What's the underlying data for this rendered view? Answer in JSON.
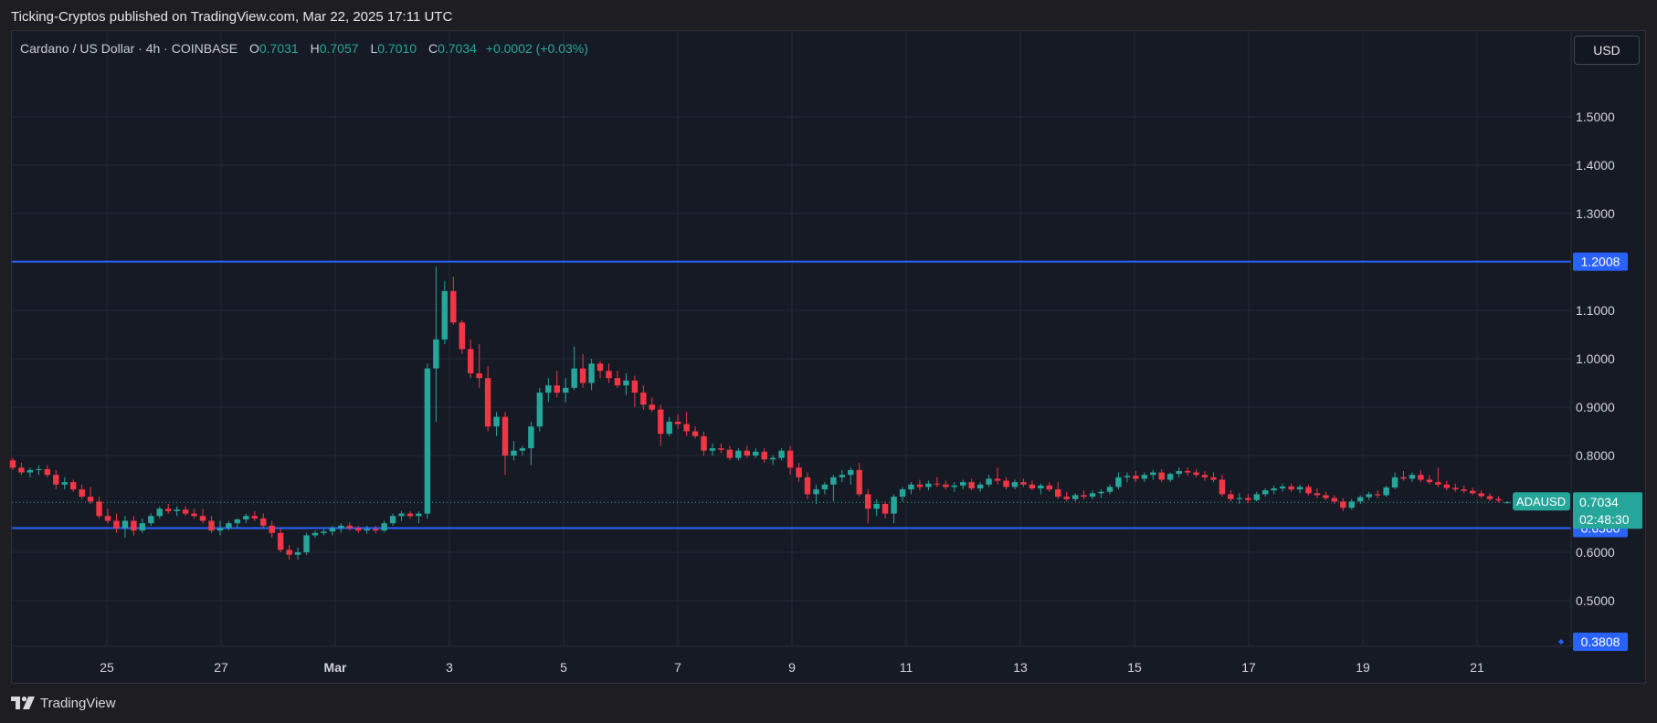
{
  "header": {
    "publisher_line": "Ticking-Cryptos published on TradingView.com, Mar 22, 2025 17:11 UTC"
  },
  "legend": {
    "symbol_line": "Cardano / US Dollar · 4h · COINBASE",
    "open_label": "O",
    "open": "0.7031",
    "high_label": "H",
    "high": "0.7057",
    "low_label": "L",
    "low": "0.7010",
    "close_label": "C",
    "close": "0.7034",
    "change": "+0.0002 (+0.03%)"
  },
  "toolbar": {
    "currency": "USD"
  },
  "footer": {
    "brand": "TradingView"
  },
  "colors": {
    "up": "#26a69a",
    "down": "#f23645",
    "level_line": "#2962ff",
    "grid": "#262a36",
    "axis_text": "#d1d4dc",
    "price_label_bg": "#26a69a"
  },
  "chart_data": {
    "type": "candlestick",
    "symbol": "ADAUSD",
    "timeframe": "4h",
    "yticks": [
      "1.5000",
      "1.4000",
      "1.3000",
      "1.1000",
      "1.0000",
      "0.9000",
      "0.8000",
      "0.6000",
      "0.5000"
    ],
    "xticks": [
      "25",
      "27",
      "Mar",
      "3",
      "5",
      "7",
      "9",
      "11",
      "13",
      "15",
      "17",
      "19",
      "21"
    ],
    "ylim": [
      0.3,
      1.6
    ],
    "grid": true,
    "horizontal_levels": [
      {
        "value": 1.2008,
        "label": "1.2008"
      },
      {
        "value": 0.65,
        "label": "0.6500"
      },
      {
        "value": 0.3808,
        "label": "0.3808"
      }
    ],
    "last_price": {
      "symbol": "ADAUSD",
      "value": 0.7034,
      "label": "0.7034",
      "countdown": "02:48:30"
    },
    "candles": [
      {
        "o": 0.79,
        "h": 0.795,
        "l": 0.77,
        "c": 0.775
      },
      {
        "o": 0.775,
        "h": 0.785,
        "l": 0.76,
        "c": 0.765
      },
      {
        "o": 0.765,
        "h": 0.775,
        "l": 0.755,
        "c": 0.77
      },
      {
        "o": 0.77,
        "h": 0.78,
        "l": 0.76,
        "c": 0.772
      },
      {
        "o": 0.772,
        "h": 0.78,
        "l": 0.755,
        "c": 0.76
      },
      {
        "o": 0.76,
        "h": 0.77,
        "l": 0.73,
        "c": 0.74
      },
      {
        "o": 0.74,
        "h": 0.755,
        "l": 0.73,
        "c": 0.745
      },
      {
        "o": 0.745,
        "h": 0.75,
        "l": 0.725,
        "c": 0.73
      },
      {
        "o": 0.73,
        "h": 0.74,
        "l": 0.71,
        "c": 0.715
      },
      {
        "o": 0.715,
        "h": 0.735,
        "l": 0.7,
        "c": 0.705
      },
      {
        "o": 0.705,
        "h": 0.715,
        "l": 0.67,
        "c": 0.675
      },
      {
        "o": 0.675,
        "h": 0.69,
        "l": 0.66,
        "c": 0.665
      },
      {
        "o": 0.665,
        "h": 0.68,
        "l": 0.64,
        "c": 0.65
      },
      {
        "o": 0.65,
        "h": 0.675,
        "l": 0.63,
        "c": 0.665
      },
      {
        "o": 0.665,
        "h": 0.675,
        "l": 0.635,
        "c": 0.645
      },
      {
        "o": 0.645,
        "h": 0.67,
        "l": 0.64,
        "c": 0.66
      },
      {
        "o": 0.66,
        "h": 0.68,
        "l": 0.655,
        "c": 0.675
      },
      {
        "o": 0.675,
        "h": 0.695,
        "l": 0.67,
        "c": 0.69
      },
      {
        "o": 0.69,
        "h": 0.7,
        "l": 0.68,
        "c": 0.685
      },
      {
        "o": 0.685,
        "h": 0.695,
        "l": 0.675,
        "c": 0.688
      },
      {
        "o": 0.688,
        "h": 0.695,
        "l": 0.675,
        "c": 0.68
      },
      {
        "o": 0.68,
        "h": 0.69,
        "l": 0.67,
        "c": 0.675
      },
      {
        "o": 0.675,
        "h": 0.69,
        "l": 0.66,
        "c": 0.665
      },
      {
        "o": 0.665,
        "h": 0.675,
        "l": 0.64,
        "c": 0.645
      },
      {
        "o": 0.645,
        "h": 0.665,
        "l": 0.635,
        "c": 0.65
      },
      {
        "o": 0.65,
        "h": 0.665,
        "l": 0.645,
        "c": 0.66
      },
      {
        "o": 0.66,
        "h": 0.67,
        "l": 0.65,
        "c": 0.668
      },
      {
        "o": 0.668,
        "h": 0.68,
        "l": 0.66,
        "c": 0.675
      },
      {
        "o": 0.675,
        "h": 0.685,
        "l": 0.665,
        "c": 0.67
      },
      {
        "o": 0.67,
        "h": 0.68,
        "l": 0.65,
        "c": 0.655
      },
      {
        "o": 0.655,
        "h": 0.665,
        "l": 0.63,
        "c": 0.64
      },
      {
        "o": 0.64,
        "h": 0.65,
        "l": 0.6,
        "c": 0.605
      },
      {
        "o": 0.605,
        "h": 0.615,
        "l": 0.585,
        "c": 0.595
      },
      {
        "o": 0.595,
        "h": 0.61,
        "l": 0.585,
        "c": 0.6
      },
      {
        "o": 0.6,
        "h": 0.64,
        "l": 0.595,
        "c": 0.635
      },
      {
        "o": 0.635,
        "h": 0.645,
        "l": 0.63,
        "c": 0.64
      },
      {
        "o": 0.64,
        "h": 0.648,
        "l": 0.635,
        "c": 0.643
      },
      {
        "o": 0.643,
        "h": 0.655,
        "l": 0.635,
        "c": 0.65
      },
      {
        "o": 0.65,
        "h": 0.66,
        "l": 0.64,
        "c": 0.655
      },
      {
        "o": 0.655,
        "h": 0.662,
        "l": 0.645,
        "c": 0.65
      },
      {
        "o": 0.65,
        "h": 0.655,
        "l": 0.64,
        "c": 0.645
      },
      {
        "o": 0.645,
        "h": 0.655,
        "l": 0.638,
        "c": 0.648
      },
      {
        "o": 0.648,
        "h": 0.655,
        "l": 0.64,
        "c": 0.645
      },
      {
        "o": 0.645,
        "h": 0.665,
        "l": 0.642,
        "c": 0.66
      },
      {
        "o": 0.66,
        "h": 0.68,
        "l": 0.655,
        "c": 0.675
      },
      {
        "o": 0.675,
        "h": 0.685,
        "l": 0.665,
        "c": 0.68
      },
      {
        "o": 0.68,
        "h": 0.685,
        "l": 0.67,
        "c": 0.675
      },
      {
        "o": 0.675,
        "h": 0.685,
        "l": 0.66,
        "c": 0.68
      },
      {
        "o": 0.68,
        "h": 0.99,
        "l": 0.67,
        "c": 0.98
      },
      {
        "o": 0.98,
        "h": 1.19,
        "l": 0.87,
        "c": 1.04
      },
      {
        "o": 1.04,
        "h": 1.16,
        "l": 1.03,
        "c": 1.14
      },
      {
        "o": 1.14,
        "h": 1.17,
        "l": 1.07,
        "c": 1.075
      },
      {
        "o": 1.075,
        "h": 1.08,
        "l": 1.01,
        "c": 1.02
      },
      {
        "o": 1.02,
        "h": 1.04,
        "l": 0.96,
        "c": 0.97
      },
      {
        "o": 0.97,
        "h": 1.03,
        "l": 0.94,
        "c": 0.96
      },
      {
        "o": 0.96,
        "h": 0.985,
        "l": 0.85,
        "c": 0.86
      },
      {
        "o": 0.86,
        "h": 0.89,
        "l": 0.84,
        "c": 0.88
      },
      {
        "o": 0.88,
        "h": 0.89,
        "l": 0.76,
        "c": 0.8
      },
      {
        "o": 0.8,
        "h": 0.83,
        "l": 0.79,
        "c": 0.81
      },
      {
        "o": 0.81,
        "h": 0.82,
        "l": 0.8,
        "c": 0.815
      },
      {
        "o": 0.815,
        "h": 0.87,
        "l": 0.78,
        "c": 0.86
      },
      {
        "o": 0.86,
        "h": 0.94,
        "l": 0.85,
        "c": 0.93
      },
      {
        "o": 0.93,
        "h": 0.96,
        "l": 0.91,
        "c": 0.945
      },
      {
        "o": 0.945,
        "h": 0.975,
        "l": 0.92,
        "c": 0.93
      },
      {
        "o": 0.93,
        "h": 0.96,
        "l": 0.91,
        "c": 0.94
      },
      {
        "o": 0.94,
        "h": 1.025,
        "l": 0.935,
        "c": 0.98
      },
      {
        "o": 0.98,
        "h": 1.01,
        "l": 0.94,
        "c": 0.95
      },
      {
        "o": 0.95,
        "h": 1.0,
        "l": 0.935,
        "c": 0.99
      },
      {
        "o": 0.99,
        "h": 0.995,
        "l": 0.96,
        "c": 0.975
      },
      {
        "o": 0.975,
        "h": 0.99,
        "l": 0.95,
        "c": 0.96
      },
      {
        "o": 0.96,
        "h": 0.975,
        "l": 0.94,
        "c": 0.945
      },
      {
        "o": 0.945,
        "h": 0.97,
        "l": 0.925,
        "c": 0.955
      },
      {
        "o": 0.955,
        "h": 0.965,
        "l": 0.9,
        "c": 0.93
      },
      {
        "o": 0.93,
        "h": 0.945,
        "l": 0.895,
        "c": 0.905
      },
      {
        "o": 0.905,
        "h": 0.92,
        "l": 0.89,
        "c": 0.895
      },
      {
        "o": 0.895,
        "h": 0.905,
        "l": 0.82,
        "c": 0.845
      },
      {
        "o": 0.845,
        "h": 0.88,
        "l": 0.84,
        "c": 0.87
      },
      {
        "o": 0.87,
        "h": 0.885,
        "l": 0.855,
        "c": 0.865
      },
      {
        "o": 0.865,
        "h": 0.89,
        "l": 0.84,
        "c": 0.85
      },
      {
        "o": 0.85,
        "h": 0.86,
        "l": 0.835,
        "c": 0.84
      },
      {
        "o": 0.84,
        "h": 0.85,
        "l": 0.8,
        "c": 0.81
      },
      {
        "o": 0.81,
        "h": 0.825,
        "l": 0.8,
        "c": 0.815
      },
      {
        "o": 0.815,
        "h": 0.825,
        "l": 0.805,
        "c": 0.812
      },
      {
        "o": 0.812,
        "h": 0.82,
        "l": 0.79,
        "c": 0.795
      },
      {
        "o": 0.795,
        "h": 0.815,
        "l": 0.79,
        "c": 0.81
      },
      {
        "o": 0.81,
        "h": 0.82,
        "l": 0.795,
        "c": 0.8
      },
      {
        "o": 0.8,
        "h": 0.815,
        "l": 0.795,
        "c": 0.808
      },
      {
        "o": 0.808,
        "h": 0.815,
        "l": 0.785,
        "c": 0.792
      },
      {
        "o": 0.792,
        "h": 0.8,
        "l": 0.78,
        "c": 0.795
      },
      {
        "o": 0.795,
        "h": 0.815,
        "l": 0.79,
        "c": 0.81
      },
      {
        "o": 0.81,
        "h": 0.82,
        "l": 0.76,
        "c": 0.775
      },
      {
        "o": 0.775,
        "h": 0.785,
        "l": 0.745,
        "c": 0.755
      },
      {
        "o": 0.755,
        "h": 0.765,
        "l": 0.71,
        "c": 0.72
      },
      {
        "o": 0.72,
        "h": 0.74,
        "l": 0.7,
        "c": 0.73
      },
      {
        "o": 0.73,
        "h": 0.745,
        "l": 0.72,
        "c": 0.74
      },
      {
        "o": 0.74,
        "h": 0.76,
        "l": 0.705,
        "c": 0.755
      },
      {
        "o": 0.755,
        "h": 0.77,
        "l": 0.745,
        "c": 0.76
      },
      {
        "o": 0.76,
        "h": 0.775,
        "l": 0.74,
        "c": 0.77
      },
      {
        "o": 0.77,
        "h": 0.785,
        "l": 0.715,
        "c": 0.72
      },
      {
        "o": 0.72,
        "h": 0.73,
        "l": 0.66,
        "c": 0.69
      },
      {
        "o": 0.69,
        "h": 0.71,
        "l": 0.675,
        "c": 0.7
      },
      {
        "o": 0.7,
        "h": 0.705,
        "l": 0.67,
        "c": 0.68
      },
      {
        "o": 0.68,
        "h": 0.72,
        "l": 0.66,
        "c": 0.715
      },
      {
        "o": 0.715,
        "h": 0.735,
        "l": 0.705,
        "c": 0.73
      },
      {
        "o": 0.73,
        "h": 0.745,
        "l": 0.72,
        "c": 0.74
      },
      {
        "o": 0.74,
        "h": 0.75,
        "l": 0.728,
        "c": 0.735
      },
      {
        "o": 0.735,
        "h": 0.748,
        "l": 0.728,
        "c": 0.742
      },
      {
        "o": 0.742,
        "h": 0.755,
        "l": 0.735,
        "c": 0.74
      },
      {
        "o": 0.74,
        "h": 0.748,
        "l": 0.73,
        "c": 0.735
      },
      {
        "o": 0.735,
        "h": 0.745,
        "l": 0.725,
        "c": 0.738
      },
      {
        "o": 0.738,
        "h": 0.75,
        "l": 0.73,
        "c": 0.745
      },
      {
        "o": 0.745,
        "h": 0.752,
        "l": 0.728,
        "c": 0.732
      },
      {
        "o": 0.732,
        "h": 0.745,
        "l": 0.725,
        "c": 0.74
      },
      {
        "o": 0.74,
        "h": 0.76,
        "l": 0.735,
        "c": 0.752
      },
      {
        "o": 0.752,
        "h": 0.775,
        "l": 0.74,
        "c": 0.748
      },
      {
        "o": 0.748,
        "h": 0.755,
        "l": 0.73,
        "c": 0.735
      },
      {
        "o": 0.735,
        "h": 0.75,
        "l": 0.73,
        "c": 0.745
      },
      {
        "o": 0.745,
        "h": 0.752,
        "l": 0.735,
        "c": 0.74
      },
      {
        "o": 0.74,
        "h": 0.748,
        "l": 0.728,
        "c": 0.732
      },
      {
        "o": 0.732,
        "h": 0.742,
        "l": 0.72,
        "c": 0.738
      },
      {
        "o": 0.738,
        "h": 0.745,
        "l": 0.725,
        "c": 0.73
      },
      {
        "o": 0.73,
        "h": 0.745,
        "l": 0.71,
        "c": 0.715
      },
      {
        "o": 0.715,
        "h": 0.725,
        "l": 0.705,
        "c": 0.71
      },
      {
        "o": 0.71,
        "h": 0.722,
        "l": 0.705,
        "c": 0.718
      },
      {
        "o": 0.718,
        "h": 0.728,
        "l": 0.71,
        "c": 0.715
      },
      {
        "o": 0.715,
        "h": 0.728,
        "l": 0.71,
        "c": 0.722
      },
      {
        "o": 0.722,
        "h": 0.73,
        "l": 0.712,
        "c": 0.725
      },
      {
        "o": 0.725,
        "h": 0.74,
        "l": 0.72,
        "c": 0.735
      },
      {
        "o": 0.735,
        "h": 0.765,
        "l": 0.73,
        "c": 0.755
      },
      {
        "o": 0.755,
        "h": 0.765,
        "l": 0.745,
        "c": 0.758
      },
      {
        "o": 0.758,
        "h": 0.768,
        "l": 0.745,
        "c": 0.752
      },
      {
        "o": 0.752,
        "h": 0.765,
        "l": 0.745,
        "c": 0.76
      },
      {
        "o": 0.76,
        "h": 0.77,
        "l": 0.75,
        "c": 0.765
      },
      {
        "o": 0.765,
        "h": 0.772,
        "l": 0.745,
        "c": 0.75
      },
      {
        "o": 0.75,
        "h": 0.765,
        "l": 0.745,
        "c": 0.762
      },
      {
        "o": 0.762,
        "h": 0.775,
        "l": 0.755,
        "c": 0.768
      },
      {
        "o": 0.768,
        "h": 0.775,
        "l": 0.758,
        "c": 0.765
      },
      {
        "o": 0.765,
        "h": 0.772,
        "l": 0.755,
        "c": 0.76
      },
      {
        "o": 0.76,
        "h": 0.768,
        "l": 0.748,
        "c": 0.755
      },
      {
        "o": 0.755,
        "h": 0.765,
        "l": 0.745,
        "c": 0.75
      },
      {
        "o": 0.75,
        "h": 0.76,
        "l": 0.715,
        "c": 0.72
      },
      {
        "o": 0.72,
        "h": 0.728,
        "l": 0.705,
        "c": 0.71
      },
      {
        "o": 0.71,
        "h": 0.722,
        "l": 0.7,
        "c": 0.712
      },
      {
        "o": 0.712,
        "h": 0.72,
        "l": 0.702,
        "c": 0.708
      },
      {
        "o": 0.708,
        "h": 0.725,
        "l": 0.705,
        "c": 0.72
      },
      {
        "o": 0.72,
        "h": 0.732,
        "l": 0.715,
        "c": 0.728
      },
      {
        "o": 0.728,
        "h": 0.738,
        "l": 0.72,
        "c": 0.732
      },
      {
        "o": 0.732,
        "h": 0.742,
        "l": 0.725,
        "c": 0.736
      },
      {
        "o": 0.736,
        "h": 0.742,
        "l": 0.725,
        "c": 0.73
      },
      {
        "o": 0.73,
        "h": 0.74,
        "l": 0.722,
        "c": 0.735
      },
      {
        "o": 0.735,
        "h": 0.74,
        "l": 0.718,
        "c": 0.722
      },
      {
        "o": 0.722,
        "h": 0.732,
        "l": 0.712,
        "c": 0.718
      },
      {
        "o": 0.718,
        "h": 0.725,
        "l": 0.708,
        "c": 0.712
      },
      {
        "o": 0.712,
        "h": 0.718,
        "l": 0.7,
        "c": 0.705
      },
      {
        "o": 0.705,
        "h": 0.712,
        "l": 0.685,
        "c": 0.692
      },
      {
        "o": 0.692,
        "h": 0.71,
        "l": 0.688,
        "c": 0.705
      },
      {
        "o": 0.705,
        "h": 0.718,
        "l": 0.7,
        "c": 0.714
      },
      {
        "o": 0.714,
        "h": 0.725,
        "l": 0.708,
        "c": 0.72
      },
      {
        "o": 0.72,
        "h": 0.728,
        "l": 0.712,
        "c": 0.718
      },
      {
        "o": 0.718,
        "h": 0.738,
        "l": 0.715,
        "c": 0.734
      },
      {
        "o": 0.734,
        "h": 0.765,
        "l": 0.73,
        "c": 0.755
      },
      {
        "o": 0.755,
        "h": 0.768,
        "l": 0.748,
        "c": 0.752
      },
      {
        "o": 0.752,
        "h": 0.765,
        "l": 0.745,
        "c": 0.76
      },
      {
        "o": 0.76,
        "h": 0.77,
        "l": 0.745,
        "c": 0.75
      },
      {
        "o": 0.75,
        "h": 0.76,
        "l": 0.74,
        "c": 0.745
      },
      {
        "o": 0.745,
        "h": 0.775,
        "l": 0.735,
        "c": 0.74
      },
      {
        "o": 0.74,
        "h": 0.748,
        "l": 0.728,
        "c": 0.733
      },
      {
        "o": 0.733,
        "h": 0.742,
        "l": 0.725,
        "c": 0.73
      },
      {
        "o": 0.73,
        "h": 0.738,
        "l": 0.722,
        "c": 0.727
      },
      {
        "o": 0.727,
        "h": 0.734,
        "l": 0.718,
        "c": 0.722
      },
      {
        "o": 0.722,
        "h": 0.728,
        "l": 0.712,
        "c": 0.716
      },
      {
        "o": 0.716,
        "h": 0.722,
        "l": 0.706,
        "c": 0.71
      },
      {
        "o": 0.71,
        "h": 0.716,
        "l": 0.703,
        "c": 0.707
      },
      {
        "o": 0.7031,
        "h": 0.7057,
        "l": 0.701,
        "c": 0.7034
      }
    ]
  }
}
